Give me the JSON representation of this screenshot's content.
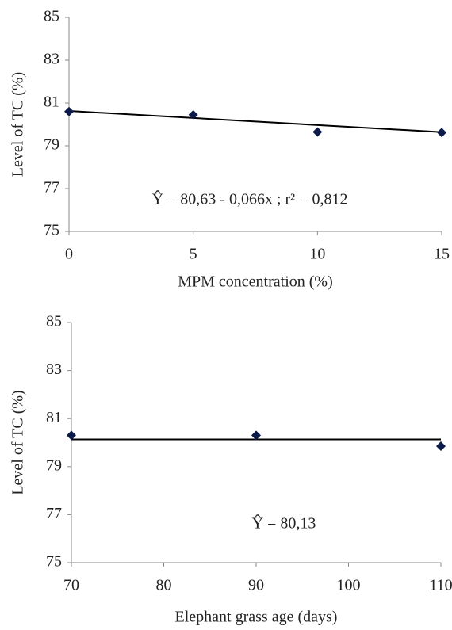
{
  "chart_data": [
    {
      "type": "scatter",
      "xlabel": "MPM concentration (%)",
      "ylabel": "Level of  TC (%)",
      "annotation": "Ŷ = 80,63 - 0,066x ; r² = 0,812",
      "series": [
        {
          "color": "#0b1a48",
          "x": [
            0,
            5,
            10,
            15
          ],
          "values": [
            80.6,
            80.45,
            79.65,
            79.62
          ]
        }
      ],
      "trendline": {
        "color": "#000000",
        "x": [
          0,
          15
        ],
        "values": [
          80.63,
          79.64
        ]
      },
      "xlim": [
        0,
        15
      ],
      "xticks": [
        0,
        5,
        10,
        15
      ],
      "ylim": [
        75,
        85
      ],
      "yticks": [
        75,
        77,
        79,
        81,
        83,
        85
      ]
    },
    {
      "type": "scatter",
      "xlabel": "Elephant grass age (days)",
      "ylabel": "Level of TC (%)",
      "annotation": "Ŷ = 80,13",
      "series": [
        {
          "color": "#0b1a48",
          "x": [
            70,
            90,
            110
          ],
          "values": [
            80.3,
            80.3,
            79.85
          ]
        }
      ],
      "trendline": {
        "color": "#000000",
        "x": [
          70,
          110
        ],
        "values": [
          80.13,
          80.13
        ]
      },
      "xlim": [
        70,
        110
      ],
      "xticks": [
        70,
        80,
        90,
        100,
        110
      ],
      "ylim": [
        75,
        85
      ],
      "yticks": [
        75,
        77,
        79,
        81,
        83,
        85
      ]
    }
  ]
}
